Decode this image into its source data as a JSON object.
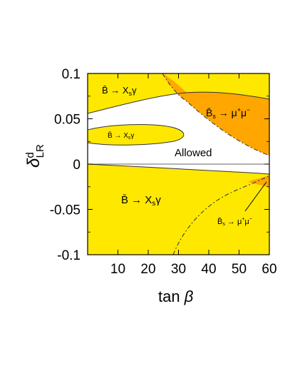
{
  "chart_data": {
    "type": "area",
    "xlabel": "tan β",
    "ylabel_main": "δ",
    "ylabel_sup": "d",
    "ylabel_sub": "LR",
    "xlim": [
      0,
      60
    ],
    "ylim": [
      -0.1,
      0.1
    ],
    "x_ticks": [
      10,
      20,
      30,
      40,
      50,
      60
    ],
    "y_ticks": [
      0.1,
      0.05,
      0,
      -0.05,
      -0.1
    ],
    "y_tick_labels": [
      "0.1",
      "0.05",
      "0",
      "-0.05",
      "-0.1"
    ],
    "colors": {
      "excluded_bsgamma": "#FFE800",
      "excluded_bsmumu": "#FFA600",
      "allowed": "#FFFFFF",
      "boundary": "#333333"
    },
    "regions": [
      {
        "label": "B̄ → Xsγ",
        "fill": "excluded_bsgamma",
        "boundary": [
          [
            0,
            0.058
          ],
          [
            10,
            0.062
          ],
          [
            20,
            0.066
          ],
          [
            30,
            0.071
          ],
          [
            40,
            0.075
          ],
          [
            50,
            0.075
          ],
          [
            60,
            0.072
          ]
        ]
      },
      {
        "label": "B̄ → Xsγ",
        "fill": "excluded_bsgamma",
        "boundary": [
          [
            0,
            0.04
          ],
          [
            10,
            0.042
          ],
          [
            20,
            0.04
          ],
          [
            27,
            0.036
          ],
          [
            30,
            0.033
          ],
          [
            27,
            0.029
          ],
          [
            20,
            0.025
          ],
          [
            10,
            0.022
          ],
          [
            0,
            0.024
          ]
        ]
      },
      {
        "label": "B̄ → Xsγ",
        "fill": "excluded_bsgamma",
        "boundary": [
          [
            0,
            -0.002
          ],
          [
            10,
            -0.004
          ],
          [
            20,
            -0.006
          ],
          [
            30,
            -0.008
          ],
          [
            40,
            -0.01
          ],
          [
            50,
            -0.012
          ],
          [
            60,
            -0.016
          ]
        ]
      },
      {
        "label": "B̄s → μ+μ−",
        "fill": "excluded_bsmumu",
        "boundary": [
          [
            26,
            0.1
          ],
          [
            28,
            0.085
          ],
          [
            31,
            0.071
          ],
          [
            35,
            0.06
          ],
          [
            40,
            0.05
          ],
          [
            45,
            0.04
          ],
          [
            50,
            0.03
          ],
          [
            55,
            0.02
          ],
          [
            60,
            0.01
          ]
        ]
      },
      {
        "label": "B̄s → μ+μ−",
        "fill": "excluded_bsmumu",
        "boundary": [
          [
            27,
            -0.1
          ],
          [
            32,
            -0.075
          ],
          [
            38,
            -0.055
          ],
          [
            45,
            -0.04
          ],
          [
            52,
            -0.028
          ],
          [
            58,
            -0.018
          ],
          [
            60,
            -0.015
          ]
        ]
      },
      {
        "label": "Allowed",
        "fill": "allowed"
      }
    ],
    "annotations": [
      {
        "text": "B̄ → Xsγ",
        "x": 8,
        "y": 0.088
      },
      {
        "text": "B̄ → Xsγ",
        "x": 8,
        "y": 0.032
      },
      {
        "text": "B̄ → Xsγ",
        "x": 18,
        "y": -0.04
      },
      {
        "text": "B̄s → μ+μ−",
        "x": 48,
        "y": 0.057
      },
      {
        "text": "B̄s → μ+μ−",
        "x": 49,
        "y": -0.064
      },
      {
        "text": "Allowed",
        "x": 39,
        "y": 0.013
      }
    ]
  }
}
